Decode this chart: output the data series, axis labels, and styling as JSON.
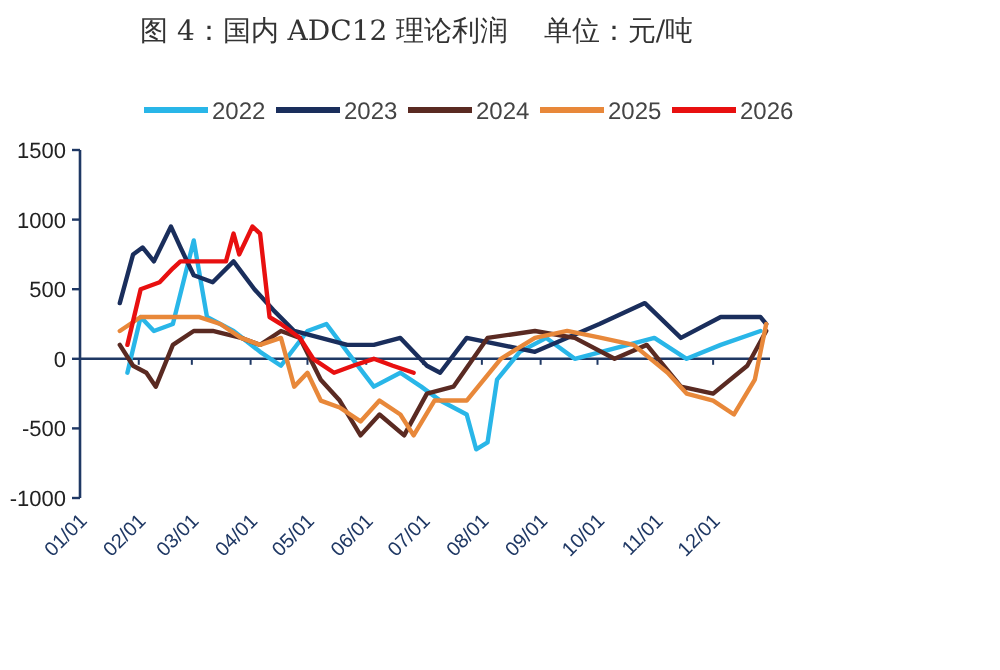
{
  "chart_data": {
    "type": "line",
    "title": "图 4：国内 ADC12 理论利润    单位：元/吨",
    "xlim": [
      "--01-01",
      "--12-31"
    ],
    "xticks": [
      {
        "value": "--01-01",
        "label": "01/01"
      },
      {
        "value": "--02-01",
        "label": "02/01"
      },
      {
        "value": "--03-01",
        "label": "03/01"
      },
      {
        "value": "--04-01",
        "label": "04/01"
      },
      {
        "value": "--05-01",
        "label": "05/01"
      },
      {
        "value": "--06-01",
        "label": "06/01"
      },
      {
        "value": "--07-01",
        "label": "07/01"
      },
      {
        "value": "--08-01",
        "label": "08/01"
      },
      {
        "value": "--09-01",
        "label": "09/01"
      },
      {
        "value": "--10-01",
        "label": "10/01"
      },
      {
        "value": "--11-01",
        "label": "11/01"
      },
      {
        "value": "--12-01",
        "label": "12/01"
      }
    ],
    "ylim": [
      -1000,
      1500
    ],
    "yticks": [
      -1000,
      -500,
      0,
      500,
      1000,
      1500
    ],
    "legend": "top",
    "grid": false,
    "ref_lines": [
      {
        "axis": "y",
        "value": 0,
        "color": "#1f3864"
      }
    ],
    "series": [
      {
        "name": "2022",
        "color": "#29b6e8",
        "x": [
          "--01-26",
          "--02-02",
          "--02-09",
          "--02-19",
          "--03-02",
          "--03-09",
          "--03-23",
          "--04-06",
          "--04-17",
          "--05-01",
          "--05-11",
          "--05-22",
          "--06-05",
          "--06-19",
          "--06-30",
          "--07-10",
          "--07-24",
          "--07-29",
          "--08-04",
          "--08-09",
          "--08-21",
          "--09-04",
          "--09-19",
          "--10-03",
          "--10-31",
          "--11-17",
          "--12-05",
          "--12-26"
        ],
        "values": [
          -100,
          300,
          200,
          250,
          850,
          300,
          200,
          50,
          -50,
          200,
          250,
          50,
          -200,
          -100,
          -200,
          -300,
          -400,
          -650,
          -600,
          -150,
          50,
          150,
          0,
          50,
          150,
          0,
          100,
          200
        ]
      },
      {
        "name": "2023",
        "color": "#1a2e5c",
        "x": [
          "--01-22",
          "--01-29",
          "--02-03",
          "--02-09",
          "--02-18",
          "--02-23",
          "--03-02",
          "--03-12",
          "--03-23",
          "--04-03",
          "--04-13",
          "--04-24",
          "--05-08",
          "--05-22",
          "--06-05",
          "--06-19",
          "--07-03",
          "--07-10",
          "--07-24",
          "--08-29",
          "--10-02",
          "--10-26",
          "--11-14",
          "--12-05",
          "--12-26",
          "--12-29"
        ],
        "values": [
          400,
          750,
          800,
          700,
          950,
          800,
          600,
          550,
          700,
          500,
          350,
          200,
          150,
          100,
          100,
          150,
          -50,
          -100,
          150,
          50,
          250,
          400,
          150,
          300,
          300,
          250
        ]
      },
      {
        "name": "2024",
        "color": "#5a2a22",
        "x": [
          "--01-22",
          "--01-29",
          "--02-05",
          "--02-10",
          "--02-19",
          "--03-02",
          "--03-12",
          "--03-27",
          "--04-06",
          "--04-17",
          "--04-27",
          "--05-08",
          "--05-18",
          "--05-29",
          "--06-08",
          "--06-21",
          "--07-03",
          "--07-17",
          "--08-04",
          "--08-29",
          "--09-19",
          "--10-10",
          "--10-27",
          "--11-14",
          "--12-01",
          "--12-19",
          "--12-29"
        ],
        "values": [
          100,
          -50,
          -100,
          -200,
          100,
          200,
          200,
          150,
          100,
          200,
          150,
          -150,
          -300,
          -550,
          -400,
          -550,
          -250,
          -200,
          150,
          200,
          150,
          0,
          100,
          -200,
          -250,
          -50,
          200
        ]
      },
      {
        "name": "2025",
        "color": "#e8883a",
        "x": [
          "--01-22",
          "--02-02",
          "--02-12",
          "--02-23",
          "--03-05",
          "--03-16",
          "--03-27",
          "--04-06",
          "--04-17",
          "--04-24",
          "--05-01",
          "--05-08",
          "--05-18",
          "--05-29",
          "--06-08",
          "--06-19",
          "--06-26",
          "--07-07",
          "--07-24",
          "--08-11",
          "--08-29",
          "--09-15",
          "--10-03",
          "--10-20",
          "--11-07",
          "--11-17",
          "--12-01",
          "--12-12",
          "--12-23",
          "--12-29"
        ],
        "values": [
          200,
          300,
          300,
          300,
          300,
          250,
          150,
          100,
          150,
          -200,
          -100,
          -300,
          -350,
          -450,
          -300,
          -400,
          -550,
          -300,
          -300,
          0,
          150,
          200,
          150,
          100,
          -100,
          -250,
          -300,
          -400,
          -150,
          250
        ]
      },
      {
        "name": "2026",
        "color": "#e81010",
        "x": [
          "--01-26",
          "--02-02",
          "--02-12",
          "--02-19",
          "--02-23",
          "--03-09",
          "--03-19",
          "--03-23",
          "--03-26",
          "--04-02",
          "--04-06",
          "--04-11",
          "--04-17",
          "--04-27",
          "--05-04",
          "--05-15",
          "--05-25",
          "--06-05",
          "--06-15",
          "--06-26"
        ],
        "values": [
          100,
          500,
          550,
          650,
          700,
          700,
          700,
          900,
          750,
          950,
          900,
          300,
          250,
          150,
          0,
          -100,
          -50,
          0,
          -50,
          -100
        ]
      }
    ]
  }
}
